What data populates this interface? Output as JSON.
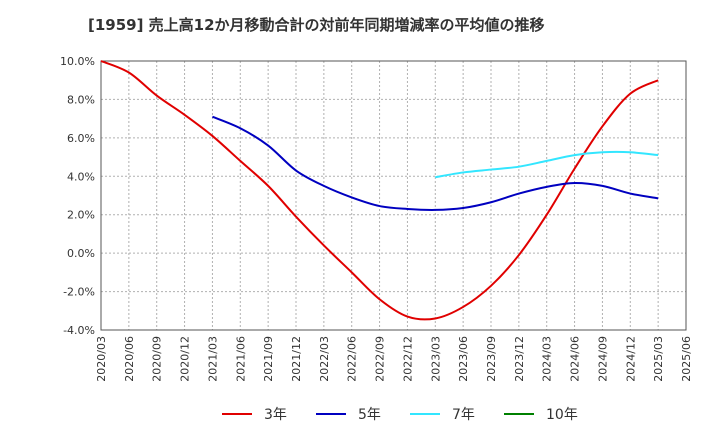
{
  "chart_data": {
    "type": "line",
    "title": "[1959]  売上高12か月移動合計の対前年同期増減率の平均値の推移",
    "xlabel": "",
    "ylabel": "",
    "ylim": [
      -4.0,
      10.0
    ],
    "y_ticks": [
      "10.0%",
      "8.0%",
      "6.0%",
      "4.0%",
      "2.0%",
      "0.0%",
      "-2.0%",
      "-4.0%"
    ],
    "y_tick_values": [
      10,
      8,
      6,
      4,
      2,
      0,
      -2,
      -4
    ],
    "x_ticks": [
      "2020/03",
      "2020/06",
      "2020/09",
      "2020/12",
      "2021/03",
      "2021/06",
      "2021/09",
      "2021/12",
      "2022/03",
      "2022/06",
      "2022/09",
      "2022/12",
      "2023/03",
      "2023/06",
      "2023/09",
      "2023/12",
      "2024/03",
      "2024/06",
      "2024/09",
      "2024/12",
      "2025/03",
      "2025/06"
    ],
    "grid": true,
    "legend_position": "bottom",
    "series": [
      {
        "name": "3年",
        "color": "#e00000",
        "x": [
          "2020/03",
          "2020/06",
          "2020/09",
          "2020/12",
          "2021/03",
          "2021/06",
          "2021/09",
          "2021/12",
          "2022/03",
          "2022/06",
          "2022/09",
          "2022/12",
          "2023/03",
          "2023/06",
          "2023/09",
          "2023/12",
          "2024/03",
          "2024/06",
          "2024/09",
          "2024/12",
          "2025/03"
        ],
        "values": [
          10.0,
          9.4,
          8.2,
          7.2,
          6.1,
          4.8,
          3.5,
          1.9,
          0.4,
          -1.0,
          -2.4,
          -3.3,
          -3.4,
          -2.8,
          -1.7,
          -0.1,
          2.0,
          4.4,
          6.6,
          8.3,
          9.0
        ]
      },
      {
        "name": "5年",
        "color": "#0000c0",
        "x": [
          "2021/03",
          "2021/06",
          "2021/09",
          "2021/12",
          "2022/03",
          "2022/06",
          "2022/09",
          "2022/12",
          "2023/03",
          "2023/06",
          "2023/09",
          "2023/12",
          "2024/03",
          "2024/06",
          "2024/09",
          "2024/12",
          "2025/03"
        ],
        "values": [
          7.1,
          6.5,
          5.6,
          4.3,
          3.5,
          2.9,
          2.45,
          2.3,
          2.25,
          2.35,
          2.65,
          3.1,
          3.45,
          3.65,
          3.5,
          3.1,
          2.85
        ]
      },
      {
        "name": "7年",
        "color": "#33e6ff",
        "x": [
          "2023/03",
          "2023/06",
          "2023/09",
          "2023/12",
          "2024/03",
          "2024/06",
          "2024/09",
          "2024/12",
          "2025/03"
        ],
        "values": [
          3.95,
          4.2,
          4.35,
          4.5,
          4.8,
          5.1,
          5.25,
          5.25,
          5.1
        ]
      },
      {
        "name": "10年",
        "color": "#008000",
        "x": [],
        "values": []
      }
    ]
  }
}
